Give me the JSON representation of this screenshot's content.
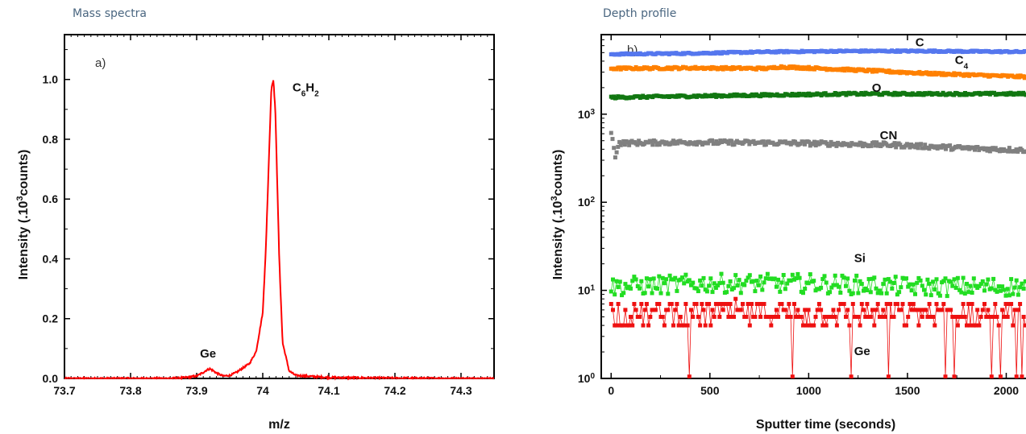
{
  "panels": {
    "left_title": "Mass spectra",
    "right_title": "Depth profile"
  },
  "chart_data": [
    {
      "type": "line",
      "panel_label": "a)",
      "title": "Mass spectra",
      "xlabel": "m/z",
      "ylabel": "Intensity (.10",
      "ylabel_sup": "3",
      "ylabel_end": "counts)",
      "xlim": [
        73.7,
        74.35
      ],
      "ylim": [
        0,
        1.15
      ],
      "x_ticks": [
        73.7,
        73.8,
        73.9,
        74.0,
        74.1,
        74.2,
        74.3
      ],
      "x_tick_labels": [
        "73.7",
        "73.8",
        "73.9",
        "74",
        "74.1",
        "74.2",
        "74.3"
      ],
      "y_ticks": [
        0,
        0.2,
        0.4,
        0.6,
        0.8,
        1.0
      ],
      "y_tick_labels": [
        "0.0",
        "0.2",
        "0.4",
        "0.6",
        "0.8",
        "1.0"
      ],
      "series": [
        {
          "color": "#ff0000",
          "x": [
            73.7,
            73.75,
            73.8,
            73.85,
            73.88,
            73.9,
            73.91,
            73.915,
            73.92,
            73.925,
            73.93,
            73.94,
            73.95,
            73.96,
            73.97,
            73.98,
            73.99,
            74.0,
            74.005,
            74.01,
            74.013,
            74.016,
            74.019,
            74.022,
            74.025,
            74.03,
            74.04,
            74.05,
            74.1,
            74.2,
            74.3,
            74.35
          ],
          "y": [
            0.0,
            0.0,
            0.0,
            0.0,
            0.002,
            0.008,
            0.02,
            0.028,
            0.032,
            0.026,
            0.018,
            0.008,
            0.01,
            0.02,
            0.035,
            0.05,
            0.09,
            0.22,
            0.45,
            0.78,
            0.97,
            1.0,
            0.9,
            0.65,
            0.4,
            0.12,
            0.025,
            0.01,
            0.003,
            0.001,
            0.0,
            0.0
          ]
        }
      ],
      "annotations": [
        {
          "text": "Ge",
          "x": 73.905,
          "y": 0.07
        },
        {
          "text": "C",
          "sub": "6",
          "text2": "H",
          "sub2": "2",
          "x": 74.045,
          "y": 0.96
        }
      ]
    },
    {
      "type": "scatter",
      "panel_label": "b)",
      "title": "Depth profile",
      "xlabel": "Sputter time (seconds)",
      "ylabel": "Intensity (.10",
      "ylabel_sup": "3",
      "ylabel_end": "counts)",
      "y_scale": "log",
      "xlim": [
        -50,
        2100
      ],
      "ylim": [
        1,
        8000
      ],
      "x_ticks": [
        0,
        500,
        1000,
        1500,
        2000
      ],
      "x_tick_labels": [
        "0",
        "500",
        "1000",
        "1500",
        "2000"
      ],
      "y_ticks": [
        1,
        10,
        100,
        1000
      ],
      "y_tick_base": "10",
      "y_tick_exps": [
        "0",
        "1",
        "2",
        "3"
      ],
      "series": [
        {
          "name": "C",
          "color": "#5577ee",
          "t": [
            0,
            400,
            800,
            1200,
            1600,
            2100
          ],
          "v": [
            4800,
            4900,
            5100,
            5200,
            5200,
            5100
          ],
          "noise": 0.02
        },
        {
          "name": "C4",
          "color": "#ff8000",
          "t": [
            0,
            400,
            800,
            850,
            1200,
            1600,
            2100
          ],
          "v": [
            3300,
            3350,
            3300,
            3450,
            3200,
            2900,
            2650
          ],
          "noise": 0.03
        },
        {
          "name": "O",
          "color": "#117711",
          "t": [
            0,
            400,
            800,
            1200,
            1600,
            2100
          ],
          "v": [
            1550,
            1600,
            1650,
            1700,
            1700,
            1700
          ],
          "noise": 0.03
        },
        {
          "name": "CN",
          "color": "#808080",
          "t": [
            0,
            20,
            40,
            400,
            900,
            1400,
            1800,
            2100
          ],
          "v": [
            600,
            330,
            470,
            480,
            470,
            450,
            410,
            390
          ],
          "noise": 0.06
        },
        {
          "name": "Si",
          "color": "#22dd22",
          "t": [
            0,
            500,
            1000,
            1500,
            2100
          ],
          "v": [
            11,
            12,
            12,
            11,
            11
          ],
          "noise": 0.25,
          "connected": true
        },
        {
          "name": "Ge",
          "color": "#ee1111",
          "t": [
            0,
            500,
            1000,
            1500,
            2100
          ],
          "v": [
            5.5,
            5.5,
            5.5,
            5.5,
            5.5
          ],
          "noise": 0.32,
          "connected": true,
          "discrete": true
        }
      ],
      "annotations": [
        {
          "text": "C",
          "x": 1540,
          "y": 5900
        },
        {
          "text": "C",
          "sub": "4",
          "x": 1740,
          "y": 3700
        },
        {
          "text": "O",
          "x": 1320,
          "y": 1800
        },
        {
          "text": "CN",
          "x": 1360,
          "y": 520
        },
        {
          "text": "Si",
          "x": 1230,
          "y": 21
        },
        {
          "text": "Ge",
          "x": 1230,
          "y": 1.85
        }
      ]
    }
  ]
}
